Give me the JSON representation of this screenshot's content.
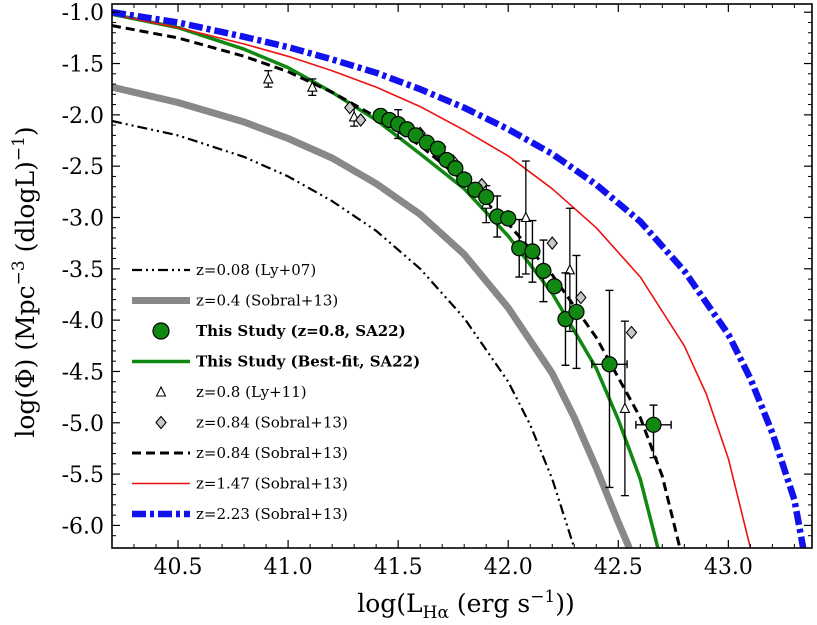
{
  "chart_data": {
    "type": "line",
    "title": "",
    "xlabel": {
      "main": "log(L",
      "sub": "Hα",
      "tail": " (erg s",
      "sup": "−1",
      "end": "))"
    },
    "ylabel": {
      "main": "log(Φ) (Mpc",
      "sup": "−3",
      "mid": " (dlogL)",
      "sup2": "−1",
      "end": ")"
    },
    "xlim": [
      40.2,
      43.38
    ],
    "ylim": [
      -6.22,
      -0.92
    ],
    "xticks": [
      40.5,
      41.0,
      41.5,
      42.0,
      42.5,
      43.0
    ],
    "xtick_labels": [
      "40.5",
      "41.0",
      "41.5",
      "42.0",
      "42.5",
      "43.0"
    ],
    "yticks": [
      -1.0,
      -1.5,
      -2.0,
      -2.5,
      -3.0,
      -3.5,
      -4.0,
      -4.5,
      -5.0,
      -5.5,
      -6.0
    ],
    "ytick_labels": [
      "-1.0",
      "-1.5",
      "-2.0",
      "-2.5",
      "-3.0",
      "-3.5",
      "-4.0",
      "-4.5",
      "-5.0",
      "-5.5",
      "-6.0"
    ],
    "legend_position": "left-center",
    "legend": [
      {
        "label": "z=0.08 (Ly+07)",
        "bold": false
      },
      {
        "label": "z=0.4 (Sobral+13)",
        "bold": false
      },
      {
        "label": "This Study (z=0.8, SA22)",
        "bold": true
      },
      {
        "label": "This Study (Best-fit, SA22)",
        "bold": true
      },
      {
        "label": "z=0.8 (Ly+11)",
        "bold": false
      },
      {
        "label": "z=0.84 (Sobral+13)",
        "bold": false
      },
      {
        "label": "z=0.84 (Sobral+13)",
        "bold": false
      },
      {
        "label": "z=1.47 (Sobral+13)",
        "bold": false
      },
      {
        "label": "z=2.23 (Sobral+13)",
        "bold": false
      }
    ],
    "curves": [
      {
        "name": "z=0.08 (Ly+07)",
        "color": "#000000",
        "style": "dashdotdot",
        "points": [
          [
            40.2,
            -2.06
          ],
          [
            40.5,
            -2.2
          ],
          [
            40.8,
            -2.41
          ],
          [
            41.0,
            -2.6
          ],
          [
            41.2,
            -2.84
          ],
          [
            41.4,
            -3.13
          ],
          [
            41.6,
            -3.5
          ],
          [
            41.8,
            -3.98
          ],
          [
            42.0,
            -4.6
          ],
          [
            42.1,
            -5.02
          ],
          [
            42.2,
            -5.55
          ],
          [
            42.3,
            -6.22
          ]
        ]
      },
      {
        "name": "z=0.4 (Sobral+13)",
        "color": "#888888",
        "style": "thick",
        "points": [
          [
            40.2,
            -1.73
          ],
          [
            40.5,
            -1.88
          ],
          [
            40.8,
            -2.07
          ],
          [
            41.0,
            -2.23
          ],
          [
            41.2,
            -2.42
          ],
          [
            41.4,
            -2.67
          ],
          [
            41.6,
            -2.97
          ],
          [
            41.8,
            -3.36
          ],
          [
            42.0,
            -3.88
          ],
          [
            42.2,
            -4.52
          ],
          [
            42.3,
            -4.95
          ],
          [
            42.4,
            -5.44
          ],
          [
            42.5,
            -5.97
          ],
          [
            42.55,
            -6.22
          ]
        ]
      },
      {
        "name": "This Study (Best-fit, SA22)",
        "color": "#118811",
        "style": "solid",
        "points": [
          [
            40.2,
            -1.02
          ],
          [
            40.5,
            -1.15
          ],
          [
            40.8,
            -1.36
          ],
          [
            41.0,
            -1.54
          ],
          [
            41.2,
            -1.78
          ],
          [
            41.4,
            -2.05
          ],
          [
            41.6,
            -2.38
          ],
          [
            41.8,
            -2.72
          ],
          [
            42.0,
            -3.18
          ],
          [
            42.2,
            -3.74
          ],
          [
            42.4,
            -4.47
          ],
          [
            42.5,
            -4.97
          ],
          [
            42.6,
            -5.55
          ],
          [
            42.68,
            -6.22
          ]
        ]
      },
      {
        "name": "z=0.84 (Sobral+13)",
        "color": "#000000",
        "style": "dashed",
        "points": [
          [
            40.2,
            -1.13
          ],
          [
            40.5,
            -1.25
          ],
          [
            40.8,
            -1.43
          ],
          [
            41.0,
            -1.58
          ],
          [
            41.2,
            -1.78
          ],
          [
            41.4,
            -2.02
          ],
          [
            41.6,
            -2.3
          ],
          [
            41.8,
            -2.65
          ],
          [
            42.0,
            -3.06
          ],
          [
            42.2,
            -3.56
          ],
          [
            42.4,
            -4.17
          ],
          [
            42.6,
            -4.95
          ],
          [
            42.7,
            -5.52
          ],
          [
            42.78,
            -6.22
          ]
        ]
      },
      {
        "name": "z=1.47 (Sobral+13)",
        "color": "#ee1111",
        "style": "thin",
        "points": [
          [
            40.2,
            -1.02
          ],
          [
            40.5,
            -1.15
          ],
          [
            40.8,
            -1.31
          ],
          [
            41.0,
            -1.43
          ],
          [
            41.2,
            -1.57
          ],
          [
            41.4,
            -1.73
          ],
          [
            41.6,
            -1.92
          ],
          [
            41.8,
            -2.15
          ],
          [
            42.0,
            -2.4
          ],
          [
            42.2,
            -2.72
          ],
          [
            42.4,
            -3.1
          ],
          [
            42.6,
            -3.58
          ],
          [
            42.8,
            -4.25
          ],
          [
            42.9,
            -4.72
          ],
          [
            43.0,
            -5.35
          ],
          [
            43.1,
            -6.22
          ]
        ]
      },
      {
        "name": "z=2.23 (Sobral+13)",
        "color": "#1111ee",
        "style": "dashdot_thick",
        "points": [
          [
            40.2,
            -1.0
          ],
          [
            40.5,
            -1.1
          ],
          [
            40.8,
            -1.24
          ],
          [
            41.0,
            -1.34
          ],
          [
            41.2,
            -1.46
          ],
          [
            41.4,
            -1.59
          ],
          [
            41.6,
            -1.75
          ],
          [
            41.8,
            -1.93
          ],
          [
            42.0,
            -2.14
          ],
          [
            42.2,
            -2.38
          ],
          [
            42.4,
            -2.68
          ],
          [
            42.6,
            -3.04
          ],
          [
            42.8,
            -3.52
          ],
          [
            43.0,
            -4.14
          ],
          [
            43.1,
            -4.57
          ],
          [
            43.2,
            -5.1
          ],
          [
            43.3,
            -5.75
          ],
          [
            43.34,
            -6.22
          ]
        ]
      }
    ],
    "this_study_points": [
      {
        "x": 41.42,
        "y": -2.01
      },
      {
        "x": 41.46,
        "y": -2.05
      },
      {
        "x": 41.5,
        "y": -2.09
      },
      {
        "x": 41.54,
        "y": -2.14
      },
      {
        "x": 41.58,
        "y": -2.2
      },
      {
        "x": 41.63,
        "y": -2.27
      },
      {
        "x": 41.68,
        "y": -2.33
      },
      {
        "x": 41.72,
        "y": -2.44
      },
      {
        "x": 41.76,
        "y": -2.52
      },
      {
        "x": 41.8,
        "y": -2.63
      },
      {
        "x": 41.85,
        "y": -2.73
      },
      {
        "x": 41.9,
        "y": -2.8
      },
      {
        "x": 41.95,
        "y": -2.99
      },
      {
        "x": 42.0,
        "y": -3.01
      },
      {
        "x": 42.05,
        "y": -3.3
      },
      {
        "x": 42.11,
        "y": -3.33
      },
      {
        "x": 42.16,
        "y": -3.52
      },
      {
        "x": 42.21,
        "y": -3.67
      },
      {
        "x": 42.26,
        "y": -3.99
      },
      {
        "x": 42.31,
        "y": -3.92
      },
      {
        "x": 42.46,
        "y": -4.43,
        "xerr": 0.08,
        "yerr": 1.2
      },
      {
        "x": 42.66,
        "y": -5.02,
        "xerr": 0.08,
        "yerr": 0.32
      }
    ],
    "this_study_errbars": [
      {
        "x": 41.5,
        "y": -2.09,
        "yerr": 0.14
      },
      {
        "x": 41.95,
        "y": -2.99,
        "yerr": 0.2
      },
      {
        "x": 42.05,
        "y": -3.3,
        "yerr": 0.28
      },
      {
        "x": 42.11,
        "y": -3.33,
        "yerr": 0.3
      },
      {
        "x": 42.16,
        "y": -3.52,
        "yerr": 0.3
      },
      {
        "x": 42.26,
        "y": -3.99,
        "yerr": 0.45
      },
      {
        "x": 42.31,
        "y": -3.92,
        "yerr": 0.55
      }
    ],
    "ly11_points": [
      {
        "x": 40.91,
        "y": -1.65,
        "yerr": 0.08
      },
      {
        "x": 41.11,
        "y": -1.73,
        "yerr": 0.08
      },
      {
        "x": 41.3,
        "y": -2.02,
        "yerr": 0.09
      },
      {
        "x": 41.7,
        "y": -2.38,
        "yerr": 0.07
      },
      {
        "x": 41.9,
        "y": -2.87,
        "yerr": 0.18
      },
      {
        "x": 42.08,
        "y": -3.0,
        "yerr": 0.55
      },
      {
        "x": 42.28,
        "y": -3.51,
        "yerr": 0.6
      },
      {
        "x": 42.53,
        "y": -4.86,
        "yerr": 0.85
      }
    ],
    "sobral84_points": [
      {
        "x": 41.28,
        "y": -1.93
      },
      {
        "x": 41.33,
        "y": -2.05
      },
      {
        "x": 41.6,
        "y": -2.18
      },
      {
        "x": 41.75,
        "y": -2.45
      },
      {
        "x": 41.88,
        "y": -2.68
      },
      {
        "x": 42.0,
        "y": -2.99
      },
      {
        "x": 42.2,
        "y": -3.25
      },
      {
        "x": 42.33,
        "y": -3.78
      },
      {
        "x": 42.56,
        "y": -4.12
      }
    ]
  }
}
